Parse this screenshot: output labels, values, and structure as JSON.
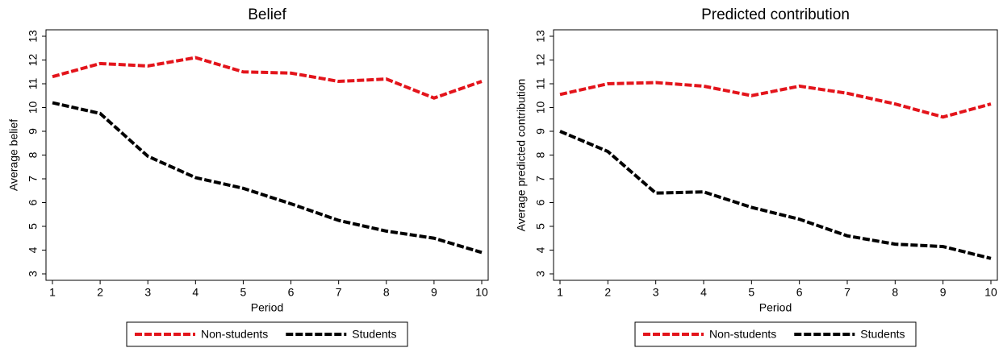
{
  "chart_data": [
    {
      "type": "line",
      "title": "Belief",
      "xlabel": "Period",
      "ylabel": "Average belief",
      "x": [
        1,
        2,
        3,
        4,
        5,
        6,
        7,
        8,
        9,
        10
      ],
      "xlim": [
        1,
        10
      ],
      "xticks": [
        1,
        2,
        3,
        4,
        5,
        6,
        7,
        8,
        9,
        10
      ],
      "ylim": [
        3,
        13
      ],
      "yticks": [
        3,
        4,
        5,
        6,
        7,
        8,
        9,
        10,
        11,
        12,
        13
      ],
      "legend": "bottom",
      "series": [
        {
          "name": "Non-students",
          "color": "#e3141b",
          "values": [
            11.3,
            11.85,
            11.75,
            12.1,
            11.5,
            11.45,
            11.1,
            11.2,
            10.4,
            11.1
          ]
        },
        {
          "name": "Students",
          "color": "#000000",
          "values": [
            10.2,
            9.75,
            7.95,
            7.05,
            6.6,
            5.95,
            5.25,
            4.8,
            4.5,
            3.9
          ]
        }
      ]
    },
    {
      "type": "line",
      "title": "Predicted contribution",
      "xlabel": "Period",
      "ylabel": "Average predicted contribution",
      "x": [
        1,
        2,
        3,
        4,
        5,
        6,
        7,
        8,
        9,
        10
      ],
      "xlim": [
        1,
        10
      ],
      "xticks": [
        1,
        2,
        3,
        4,
        5,
        6,
        7,
        8,
        9,
        10
      ],
      "ylim": [
        3,
        13
      ],
      "yticks": [
        3,
        4,
        5,
        6,
        7,
        8,
        9,
        10,
        11,
        12,
        13
      ],
      "legend": "bottom",
      "series": [
        {
          "name": "Non-students",
          "color": "#e3141b",
          "values": [
            10.55,
            11.0,
            11.05,
            10.9,
            10.5,
            10.9,
            10.6,
            10.15,
            9.6,
            10.15
          ]
        },
        {
          "name": "Students",
          "color": "#000000",
          "values": [
            9.0,
            8.15,
            6.4,
            6.45,
            5.8,
            5.3,
            4.6,
            4.25,
            4.15,
            3.65
          ]
        }
      ]
    }
  ]
}
